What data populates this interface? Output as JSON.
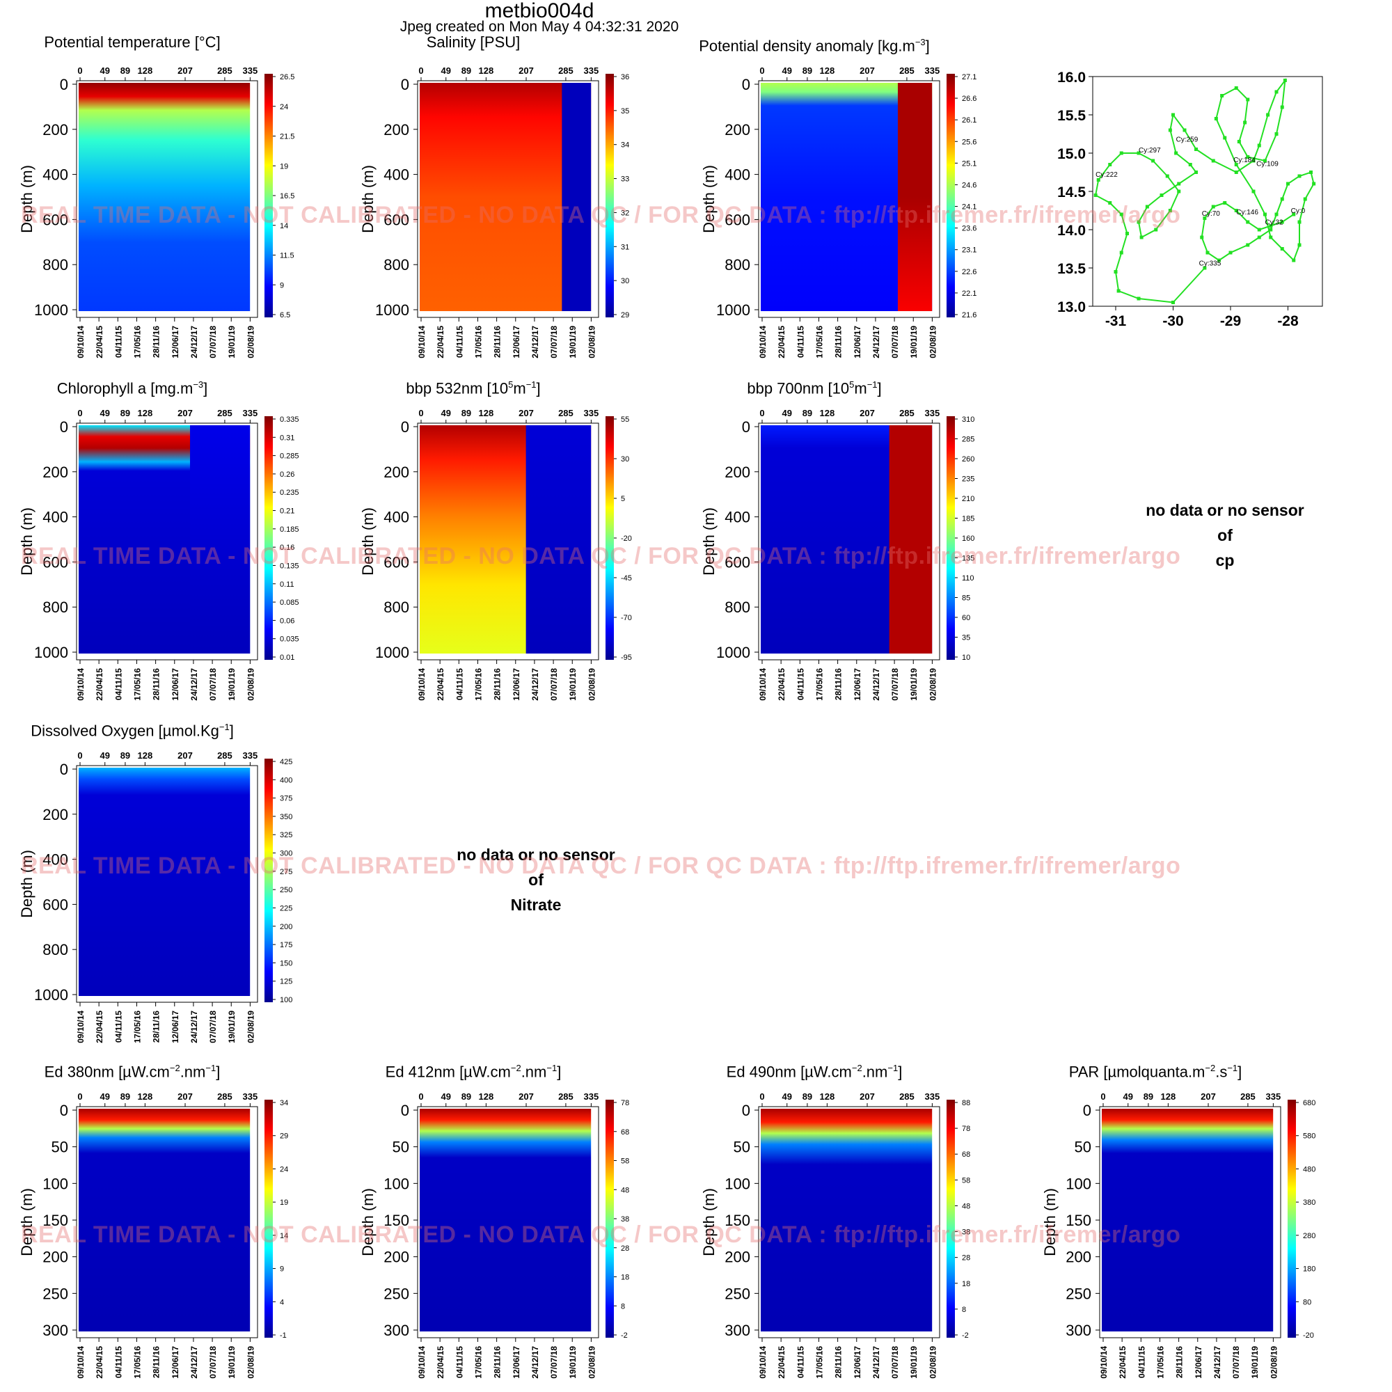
{
  "header": {
    "title": "metbio004d",
    "created": "Jpeg created on  Mon May  4 04:32:31 2020"
  },
  "watermark": "REAL TIME DATA - NOT CALIBRATED - NO DATA QC   /  FOR QC DATA : ftp://ftp.ifremer.fr/ifremer/argo",
  "top_axis_ticks": [
    "0",
    "49",
    "89",
    "128",
    "207",
    "285",
    "335"
  ],
  "date_ticks": [
    "09/10/14",
    "22/04/15",
    "04/11/15",
    "17/05/16",
    "28/11/16",
    "12/06/17",
    "24/12/17",
    "07/07/18",
    "19/01/19",
    "02/08/19"
  ],
  "ylabel": "Depth (m)",
  "nodata_cp": {
    "l1": "no data or no sensor",
    "l2": "of",
    "l3": "cp"
  },
  "nodata_nitrate": {
    "l1": "no data or no sensor",
    "l2": "of",
    "l3": "Nitrate"
  },
  "colors": {
    "jet": [
      "#00008f",
      "#0000ff",
      "#0080ff",
      "#00ffff",
      "#80ff80",
      "#ffff00",
      "#ff8000",
      "#ff0000",
      "#800000"
    ],
    "track": "#22e022"
  },
  "chart_data": [
    {
      "id": "temp",
      "type": "heatmap",
      "title": "Potential temperature [°C]",
      "ylabel": "Depth (m)",
      "ylim": [
        1000,
        0
      ],
      "yticks": [
        "0",
        "200",
        "400",
        "600",
        "800",
        "1000"
      ],
      "colorbar": [
        "26.5",
        "24",
        "21.5",
        "19",
        "16.5",
        "14",
        "11.5",
        "9",
        "6.5"
      ]
    },
    {
      "id": "sal",
      "type": "heatmap",
      "title": "Salinity [PSU]",
      "ylabel": "Depth (m)",
      "ylim": [
        1000,
        0
      ],
      "yticks": [
        "0",
        "200",
        "400",
        "600",
        "800",
        "1000"
      ],
      "colorbar": [
        "36",
        "35",
        "34",
        "33",
        "32",
        "31",
        "30",
        "29"
      ]
    },
    {
      "id": "dens",
      "type": "heatmap",
      "title": "Potential density anomaly [kg.m-3]",
      "ylabel": "Depth (m)",
      "ylim": [
        1000,
        0
      ],
      "yticks": [
        "0",
        "200",
        "400",
        "600",
        "800",
        "1000"
      ],
      "colorbar": [
        "27.1",
        "26.6",
        "26.1",
        "25.6",
        "25.1",
        "24.6",
        "24.1",
        "23.6",
        "23.1",
        "22.6",
        "22.1",
        "21.6"
      ]
    },
    {
      "id": "map",
      "type": "line",
      "xlim": [
        -31.4,
        -27.4
      ],
      "ylim": [
        13.0,
        16.0
      ],
      "xticks": [
        "-31",
        "-30",
        "-29",
        "-28"
      ],
      "yticks": [
        "16.0",
        "15.5",
        "15.0",
        "14.5",
        "14.0",
        "13.5",
        "13.0"
      ],
      "labels": [
        {
          "text": "Cy:0",
          "x": -27.95,
          "y": 14.22
        },
        {
          "text": "Cy:32",
          "x": -28.4,
          "y": 14.07
        },
        {
          "text": "Cy:70",
          "x": -29.5,
          "y": 14.18
        },
        {
          "text": "Cy:146",
          "x": -28.9,
          "y": 14.2
        },
        {
          "text": "Cy:184",
          "x": -28.95,
          "y": 14.88
        },
        {
          "text": "Cy:109",
          "x": -28.55,
          "y": 14.83
        },
        {
          "text": "Cy:259",
          "x": -29.95,
          "y": 15.15
        },
        {
          "text": "Cy:297",
          "x": -30.6,
          "y": 15.01
        },
        {
          "text": "Cy:222",
          "x": -31.35,
          "y": 14.69
        },
        {
          "text": "Cy:335",
          "x": -29.55,
          "y": 13.53
        }
      ],
      "track": [
        [
          -27.9,
          14.2
        ],
        [
          -28.1,
          14.1
        ],
        [
          -28.3,
          14.05
        ],
        [
          -28.5,
          14.0
        ],
        [
          -28.7,
          14.1
        ],
        [
          -28.9,
          14.25
        ],
        [
          -29.1,
          14.35
        ],
        [
          -29.3,
          14.3
        ],
        [
          -29.45,
          14.15
        ],
        [
          -29.5,
          13.9
        ],
        [
          -29.4,
          13.7
        ],
        [
          -29.2,
          13.6
        ],
        [
          -29.0,
          13.7
        ],
        [
          -28.7,
          13.8
        ],
        [
          -28.5,
          13.9
        ],
        [
          -28.3,
          14.0
        ],
        [
          -28.2,
          14.2
        ],
        [
          -28.1,
          14.4
        ],
        [
          -28.0,
          14.6
        ],
        [
          -27.8,
          14.7
        ],
        [
          -27.6,
          14.75
        ],
        [
          -27.55,
          14.6
        ],
        [
          -27.7,
          14.4
        ],
        [
          -27.8,
          14.1
        ],
        [
          -27.8,
          13.8
        ],
        [
          -27.9,
          13.6
        ],
        [
          -28.1,
          13.75
        ],
        [
          -28.3,
          13.9
        ],
        [
          -28.4,
          14.2
        ],
        [
          -28.6,
          14.5
        ],
        [
          -28.9,
          14.85
        ],
        [
          -29.1,
          15.2
        ],
        [
          -29.25,
          15.45
        ],
        [
          -29.15,
          15.75
        ],
        [
          -28.9,
          15.85
        ],
        [
          -28.7,
          15.7
        ],
        [
          -28.75,
          15.4
        ],
        [
          -28.85,
          15.15
        ],
        [
          -28.7,
          14.95
        ],
        [
          -28.4,
          14.9
        ],
        [
          -28.2,
          15.25
        ],
        [
          -28.1,
          15.6
        ],
        [
          -28.05,
          15.95
        ],
        [
          -28.2,
          15.8
        ],
        [
          -28.35,
          15.5
        ],
        [
          -28.5,
          15.1
        ],
        [
          -28.6,
          14.9
        ],
        [
          -28.9,
          14.75
        ],
        [
          -29.3,
          14.9
        ],
        [
          -29.6,
          15.05
        ],
        [
          -29.8,
          15.3
        ],
        [
          -30.0,
          15.5
        ],
        [
          -30.05,
          15.3
        ],
        [
          -29.95,
          15.0
        ],
        [
          -29.7,
          14.85
        ],
        [
          -29.6,
          14.75
        ],
        [
          -29.9,
          14.6
        ],
        [
          -30.2,
          14.45
        ],
        [
          -30.45,
          14.3
        ],
        [
          -30.6,
          14.1
        ],
        [
          -30.55,
          13.9
        ],
        [
          -30.3,
          14.0
        ],
        [
          -30.05,
          14.25
        ],
        [
          -29.9,
          14.5
        ],
        [
          -30.1,
          14.7
        ],
        [
          -30.35,
          14.9
        ],
        [
          -30.6,
          15.0
        ],
        [
          -30.9,
          15.0
        ],
        [
          -31.1,
          14.85
        ],
        [
          -31.3,
          14.65
        ],
        [
          -31.35,
          14.45
        ],
        [
          -31.1,
          14.35
        ],
        [
          -30.9,
          14.2
        ],
        [
          -30.8,
          13.95
        ],
        [
          -30.9,
          13.7
        ],
        [
          -31.0,
          13.45
        ],
        [
          -30.95,
          13.2
        ],
        [
          -30.6,
          13.1
        ],
        [
          -30.0,
          13.05
        ],
        [
          -29.45,
          13.5
        ]
      ]
    },
    {
      "id": "chla",
      "type": "heatmap",
      "title": "Chlorophyll a [mg.m-3]",
      "ylabel": "Depth (m)",
      "ylim": [
        1000,
        0
      ],
      "yticks": [
        "0",
        "200",
        "400",
        "600",
        "800",
        "1000"
      ],
      "colorbar": [
        "0.335",
        "0.31",
        "0.285",
        "0.26",
        "0.235",
        "0.21",
        "0.185",
        "0.16",
        "0.135",
        "0.11",
        "0.085",
        "0.06",
        "0.035",
        "0.01"
      ]
    },
    {
      "id": "bbp532",
      "type": "heatmap",
      "title": "bbp 532nm [10^5m^-1]",
      "ylabel": "Depth (m)",
      "ylim": [
        1000,
        0
      ],
      "yticks": [
        "0",
        "200",
        "400",
        "600",
        "800",
        "1000"
      ],
      "colorbar": [
        "55",
        "30",
        "5",
        "-20",
        "-45",
        "-70",
        "-95"
      ]
    },
    {
      "id": "bbp700",
      "type": "heatmap",
      "title": "bbp 700nm [10^5m^-1]",
      "ylabel": "Depth (m)",
      "ylim": [
        1000,
        0
      ],
      "yticks": [
        "0",
        "200",
        "400",
        "600",
        "800",
        "1000"
      ],
      "colorbar": [
        "310",
        "285",
        "260",
        "235",
        "210",
        "185",
        "160",
        "135",
        "110",
        "85",
        "60",
        "35",
        "10"
      ]
    },
    {
      "id": "oxy",
      "type": "heatmap",
      "title": "Dissolved Oxygen [µmol.Kg-1]",
      "ylabel": "Depth (m)",
      "ylim": [
        1000,
        0
      ],
      "yticks": [
        "0",
        "200",
        "400",
        "600",
        "800",
        "1000"
      ],
      "colorbar": [
        "425",
        "400",
        "375",
        "350",
        "325",
        "300",
        "275",
        "250",
        "225",
        "200",
        "175",
        "150",
        "125",
        "100"
      ]
    },
    {
      "id": "ed380",
      "type": "heatmap",
      "title": "Ed 380nm [µW.cm-2.nm-1]",
      "ylabel": "Depth (m)",
      "ylim": [
        300,
        0
      ],
      "yticks": [
        "0",
        "50",
        "100",
        "150",
        "200",
        "250",
        "300"
      ],
      "colorbar": [
        "34",
        "29",
        "24",
        "19",
        "14",
        "9",
        "4",
        "-1"
      ]
    },
    {
      "id": "ed412",
      "type": "heatmap",
      "title": "Ed 412nm [µW.cm-2.nm-1]",
      "ylabel": "Depth (m)",
      "ylim": [
        300,
        0
      ],
      "yticks": [
        "0",
        "50",
        "100",
        "150",
        "200",
        "250",
        "300"
      ],
      "colorbar": [
        "78",
        "68",
        "58",
        "48",
        "38",
        "28",
        "18",
        "8",
        "-2"
      ]
    },
    {
      "id": "ed490",
      "type": "heatmap",
      "title": "Ed 490nm [µW.cm-2.nm-1]",
      "ylabel": "Depth (m)",
      "ylim": [
        300,
        0
      ],
      "yticks": [
        "0",
        "50",
        "100",
        "150",
        "200",
        "250",
        "300"
      ],
      "colorbar": [
        "88",
        "78",
        "68",
        "58",
        "48",
        "38",
        "28",
        "18",
        "8",
        "-2"
      ]
    },
    {
      "id": "par",
      "type": "heatmap",
      "title": "PAR [µmolquanta.m-2.s-1]",
      "ylabel": "Depth (m)",
      "ylim": [
        300,
        0
      ],
      "yticks": [
        "0",
        "50",
        "100",
        "150",
        "200",
        "250",
        "300"
      ],
      "colorbar": [
        "680",
        "580",
        "480",
        "380",
        "280",
        "180",
        "80",
        "-20"
      ]
    }
  ]
}
